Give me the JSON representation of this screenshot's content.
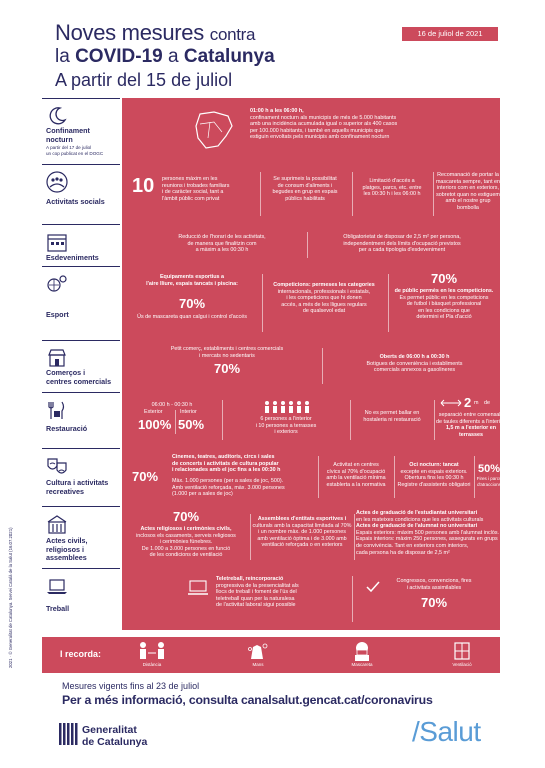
{
  "header": {
    "title_line1": "Noves mesures",
    "title_line1_small": "contra",
    "title_line2_pre": "la",
    "title_line2_covid": "COVID-19",
    "title_line2_mid": "a",
    "title_line2_cat": "Catalunya",
    "subtitle": "A partir del 15 de juliol",
    "date": "16 de juliol de 2021"
  },
  "rows": {
    "confinament": {
      "label_l1": "Confinament",
      "label_l2": "nocturn",
      "note_l1": "A partir del 17 de juliol",
      "note_l2": "un cop publicat en el DOGC",
      "hours": "01:00 h a les 06:00 h,",
      "text_l1": "confinament nocturn als municipis de més de 5.000 habitants",
      "text_l2": "amb una incidència acumulada igual o superior als 400 casos",
      "text_l3": "per 100.000 habitants, i també en aquells municipis que",
      "text_l4": "estiguin envoltats pels municipis amb confinament nocturn"
    },
    "socials": {
      "label": "Activitats socials",
      "num": "10",
      "a_l1": "persones màxim en les",
      "a_l2": "reunions i trobades familiars",
      "a_l3": "i de caràcter social, tant a",
      "a_l4": "l'àmbit públic com privat",
      "b_l1": "Se suprimeix la possibilitat",
      "b_l2": "de consum d'aliments i",
      "b_l3": "begudes en grup en espais",
      "b_l4": "públics habilitats",
      "c_l1": "Limitació d'accés a",
      "c_l2": "platges, parcs, etc. entre",
      "c_l3": "les 00:30 h i les 06:00 h",
      "d_l1": "Recomanació de portar la",
      "d_l2": "mascareta sempre, tant en",
      "d_l3": "interiors com en exteriors,",
      "d_l4": "sobretot quan no estiguem",
      "d_l5": "amb el nostre grup bombolla"
    },
    "esdeveniments": {
      "label": "Esdeveniments",
      "a_l1": "Reducció de l'horari de les activitats,",
      "a_l2": "de manera que finalitzin com",
      "a_l3": "a màxim a les 00:30 h",
      "b_l1": "Obligatorietat de disposar de 2,5 m² per persona,",
      "b_l2": "independentment dels límits d'ocupació previstos",
      "b_l3": "per a cada tipologia d'esdeveniment"
    },
    "esport": {
      "label": "Esport",
      "a_l1": "Equipaments esportius a",
      "a_l2": "l'aire lliure, espais tancats i piscina:",
      "a_pct": "70%",
      "a_l3": "Ús de mascareta quan calgui i control d'accés",
      "b_l1": "Competicions: permeses les categories",
      "b_l2": "internacionals, professionals i estatals,",
      "b_l3": "i les competicions que hi donen",
      "b_l4": "accés, a més de les lligues regulars",
      "b_l5": "de qualsevol edat",
      "c_pct": "70%",
      "c_l1": "de públic permès en les competicions.",
      "c_l2": "Es permet públic en les competicions",
      "c_l3": "de futbol i bàsquet professional",
      "c_l4": "en les condicions que",
      "c_l5": "determini el Pla d'acció"
    },
    "comercos": {
      "label_l1": "Comerços i",
      "label_l2": "centres comercials",
      "a_l1": "Petit comerç, establiments i centres comercials",
      "a_l2": "i mercats no sedentaris",
      "a_pct": "70%",
      "b_l1": "Oberts de 06:00 h a 00:30 h",
      "b_l2": "Botigues de conveniència i establiments",
      "b_l3": "comercials annexos a gasolineres"
    },
    "restauracio": {
      "label": "Restauració",
      "hours": "06:00 h - 00:30 h",
      "ext": "Exterior",
      "int": "Interior",
      "ext_pct": "100%",
      "int_pct": "50%",
      "b_l1": "6 persones a l'interior",
      "b_l2": "i 10 persones a terrasses",
      "b_l3": "i exteriors",
      "c_l1": "No es permet ballar en",
      "c_l2": "hostaleria ni restauració",
      "d_num": "2",
      "d_unit": "m",
      "d_l1": "de",
      "d_l2": "separació entre comensals",
      "d_l3": "de taules diferents a l'interior,",
      "d_l4": "1,5 m a l'exterior en terrasses"
    },
    "cultura": {
      "label_l1": "Cultura i activitats",
      "label_l2": "recreatives",
      "pct": "70%",
      "a_l1": "Cinemes, teatres, auditoris, circs i sales",
      "a_l2": "de concerts i activitats de cultura popular",
      "a_l3": "i relacionades amb el joc fins a les 00:30 h",
      "a_l4": "Màx. 1.000 persones (per a sales de joc, 500).",
      "a_l5": "Amb ventilació reforçada, màx. 3.000 persones",
      "a_l6": "(1.000 per a sales de joc)",
      "b_l1": "Activitat en centres",
      "b_l2": "cívics al 70% d'ocupació",
      "b_l3": "amb la ventilació mínima",
      "b_l4": "establerta a la normativa",
      "c_l1": "Oci nocturn: tancat",
      "c_l2": "excepte en espais exteriors.",
      "c_l3": "Obertura fins les 00:30 h",
      "c_l4": "Registre d'assistents obligatori",
      "d_pct": "50%",
      "d_l1": "Fires i parcs",
      "d_l2": "d'atraccions"
    },
    "actes": {
      "label_l1": "Actes civils,",
      "label_l2": "religiosos i",
      "label_l3": "assemblees",
      "a_pct": "70%",
      "a_l1": "Actes religiosos i cerimònies civils,",
      "a_l2": "inclosos els casaments, serveis religiosos",
      "a_l3": "i cerimònies fúnebres.",
      "a_l4": "De 1.000 a 3.000 persones en funció",
      "a_l5": "de les condicions de ventilació",
      "b_l1": "Assemblees d'entitats esportives i",
      "b_l2": "culturals amb la capacitat limitada al 70%",
      "b_l3": "i un nombre màx. de 1.000 persones",
      "b_l4": "amb ventilació òptima i de 3.000 amb",
      "b_l5": "ventilació reforçada o en exteriors",
      "c_l1": "Actes de graduació de l'estudiantat universitari",
      "c_l2": "en les mateixes condicions que les activitats culturals",
      "c_l3": "Actes de graduació de l'alumnat no universitari",
      "c_l4": "Espais exteriors: màxim 500 persones amb l'alumnat inclòs.",
      "c_l5": "Espais interiors: màxim 250 persones, assegurats en grups",
      "c_l6": "de convivència. Tant en exteriors com interiors,",
      "c_l7": "cada persona ha de disposar de 2,5 m²"
    },
    "treball": {
      "label": "Treball",
      "a_l1": "Teletreball, reincorporació",
      "a_l2": "progressiva de la presencialitat als",
      "a_l3": "llocs de treball i foment de l'ús del",
      "a_l4": "teletreball quan per la naturalesa",
      "a_l5": "de l'activitat laboral sigui possible",
      "b_l1": "Congressos, convencions, fires",
      "b_l2": "i activitats assimilables",
      "b_pct": "70%"
    }
  },
  "recorda": {
    "label": "I recorda:",
    "items": [
      "Distància",
      "Mans",
      "Mascareta",
      "Ventilació"
    ]
  },
  "footer": {
    "line1": "Mesures vigents fins al 23 de juliol",
    "line2": "Per a més informació, consulta canalsalut.gencat.cat/coronavirus",
    "gen_l1": "Generalitat",
    "gen_l2": "de Catalunya",
    "salut": "/Salut",
    "vertical": "2021 · © Generalitat de Catalunya. Servei Català de la Salut (16.07.2021)"
  },
  "colors": {
    "navy": "#2b2a62",
    "red": "#cc4a5c",
    "salut_blue": "#5a9cd6"
  }
}
